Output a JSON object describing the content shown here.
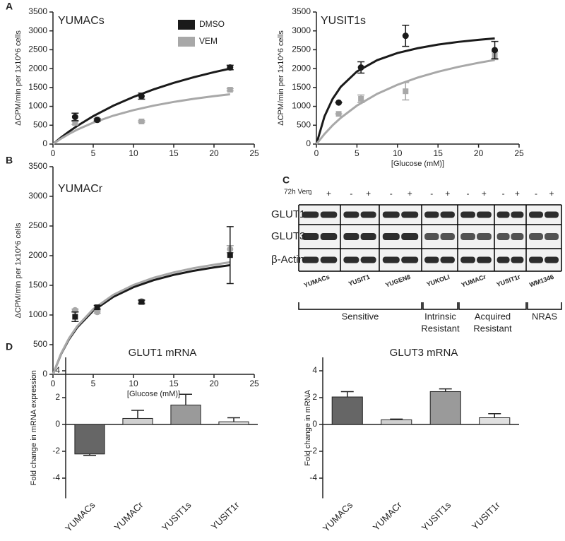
{
  "panel_labels": [
    "A",
    "B",
    "C",
    "D"
  ],
  "chart_data": [
    {
      "type": "scatter",
      "title": "YUMACs",
      "ylabel": "ΔCPM/min per 1x10^6 cells",
      "x": [
        2.75,
        5.5,
        11,
        22
      ],
      "xlim": [
        0,
        25
      ],
      "xticks": [
        0,
        5,
        10,
        15,
        20,
        25
      ],
      "ylim": [
        0,
        3500
      ],
      "yticks": [
        0,
        500,
        1000,
        1500,
        2000,
        2500,
        3000,
        3500
      ],
      "legend": true,
      "fit_x": [
        0,
        1,
        2,
        3,
        5,
        7.5,
        10,
        12.5,
        15,
        17.5,
        20,
        22
      ],
      "series": [
        {
          "name": "DMSO",
          "color": "#1a1a1a",
          "marker": "circle",
          "values": [
            720,
            640,
            1270,
            2030
          ],
          "errors": [
            100,
            30,
            80,
            60
          ],
          "fit_values": [
            0,
            174,
            333,
            480,
            741,
            1017,
            1250,
            1449,
            1622,
            1772,
            1905,
            2000
          ]
        },
        {
          "name": "VEM",
          "color": "#a8a8a8",
          "marker": "square",
          "values": [
            560,
            650,
            600,
            1440
          ],
          "errors": [
            40,
            20,
            20,
            30
          ],
          "fit_values": [
            0,
            144,
            270,
            381,
            568,
            753,
            900,
            1019,
            1117,
            1200,
            1271,
            1320
          ]
        }
      ]
    },
    {
      "type": "scatter",
      "title": "YUSIT1s",
      "ylabel": "ΔCPM/min per 1x10^6 cells",
      "xlabel": "[Glucose (mM)]",
      "x": [
        2.75,
        5.5,
        11,
        22
      ],
      "xlim": [
        0,
        25
      ],
      "xticks": [
        0,
        5,
        10,
        15,
        20,
        25
      ],
      "ylim": [
        0,
        3500
      ],
      "yticks": [
        0,
        500,
        1000,
        1500,
        2000,
        2500,
        3000,
        3500
      ],
      "fit_x": [
        0,
        1,
        2,
        3,
        5,
        7.5,
        10,
        12.5,
        15,
        17.5,
        20,
        22
      ],
      "series": [
        {
          "color": "#1a1a1a",
          "marker": "circle",
          "values": [
            1100,
            2030,
            2870,
            2490
          ],
          "errors": [
            0,
            150,
            280,
            230
          ],
          "fit_values": [
            0,
            735,
            1197,
            1516,
            1924,
            2224,
            2413,
            2541,
            2636,
            2708,
            2764,
            2800
          ]
        },
        {
          "color": "#a8a8a8",
          "marker": "square",
          "values": [
            800,
            1200,
            1400,
            2340
          ],
          "errors": [
            0,
            100,
            230,
            100
          ],
          "fit_values": [
            0,
            268,
            497,
            694,
            1020,
            1331,
            1572,
            1762,
            1918,
            2046,
            2154,
            2230
          ]
        }
      ]
    },
    {
      "type": "scatter",
      "title": "YUMACr",
      "ylabel": "ΔCPM/min per 1x10^6 cells",
      "xlabel": "[Glucose (mM)]",
      "x": [
        2.75,
        5.5,
        11,
        22
      ],
      "xlim": [
        0,
        25
      ],
      "xticks": [
        0,
        5,
        10,
        15,
        20,
        25
      ],
      "ylim": [
        0,
        3500
      ],
      "yticks": [
        0,
        500,
        1000,
        1500,
        2000,
        2500,
        3000,
        3500
      ],
      "fit_x": [
        0,
        1,
        2,
        3,
        5,
        7.5,
        10,
        12.5,
        15,
        17.5,
        20,
        22
      ],
      "series": [
        {
          "color": "#1a1a1a",
          "marker": "square",
          "values": [
            970,
            1130,
            1220,
            2010
          ],
          "errors": [
            80,
            30,
            30,
            480
          ],
          "fit_values": [
            0,
            340,
            593,
            789,
            1073,
            1307,
            1469,
            1587,
            1676,
            1746,
            1802,
            1840
          ]
        },
        {
          "color": "#a8a8a8",
          "marker": "circle",
          "values": [
            1080,
            1050,
            1230,
            2110
          ],
          "errors": [
            20,
            20,
            20,
            60
          ],
          "fit_values": [
            0,
            348,
            608,
            809,
            1100,
            1340,
            1506,
            1627,
            1718,
            1790,
            1847,
            1890
          ]
        }
      ]
    },
    {
      "type": "bar",
      "title": "GLUT1 mRNA",
      "ylabel": "Fold change in mRNA expression",
      "categories": [
        "YUMACs",
        "YUMACr",
        "YUSIT1s",
        "YUSIT1r"
      ],
      "values": [
        -2.2,
        0.45,
        1.45,
        0.2
      ],
      "errors": [
        0.1,
        0.6,
        0.8,
        0.3
      ],
      "colors": [
        "#666666",
        "#d0d0d0",
        "#9a9a9a",
        "#e0e0e0"
      ],
      "ylim": [
        -5.5,
        5
      ],
      "yticks": [
        -4,
        -2,
        0,
        2,
        4
      ]
    },
    {
      "type": "bar",
      "title": "GLUT3 mRNA",
      "ylabel": "Fold change in mRNA",
      "categories": [
        "YUMACs",
        "YUMACr",
        "YUSIT1s",
        "YUSIT1r"
      ],
      "values": [
        2.05,
        0.35,
        2.45,
        0.5
      ],
      "errors": [
        0.4,
        0.05,
        0.2,
        0.3
      ],
      "colors": [
        "#666666",
        "#d0d0d0",
        "#9a9a9a",
        "#e0e0e0"
      ],
      "ylim": [
        -5.5,
        5
      ],
      "yticks": [
        -4,
        -2,
        0,
        2,
        4
      ]
    }
  ],
  "blot": {
    "lane_header": "72h Vem",
    "lane_signs": [
      "-",
      "+",
      "-",
      "+",
      "-",
      "+",
      "-",
      "+",
      "-",
      "+",
      "-",
      "+",
      "-",
      "+"
    ],
    "rows": [
      "GLUT1",
      "GLUT3",
      "β-Actin"
    ],
    "cell_lines": [
      "YUMACs",
      "YUSIT1",
      "YUGEN8",
      "YUKOLI",
      "YUMACr",
      "YUSIT1r",
      "WM1346"
    ],
    "groups": [
      [
        "Sensitive"
      ],
      [
        "Intrinsic",
        "Resistant"
      ],
      [
        "Acquired",
        "Resistant"
      ],
      [
        "NRAS"
      ]
    ]
  }
}
